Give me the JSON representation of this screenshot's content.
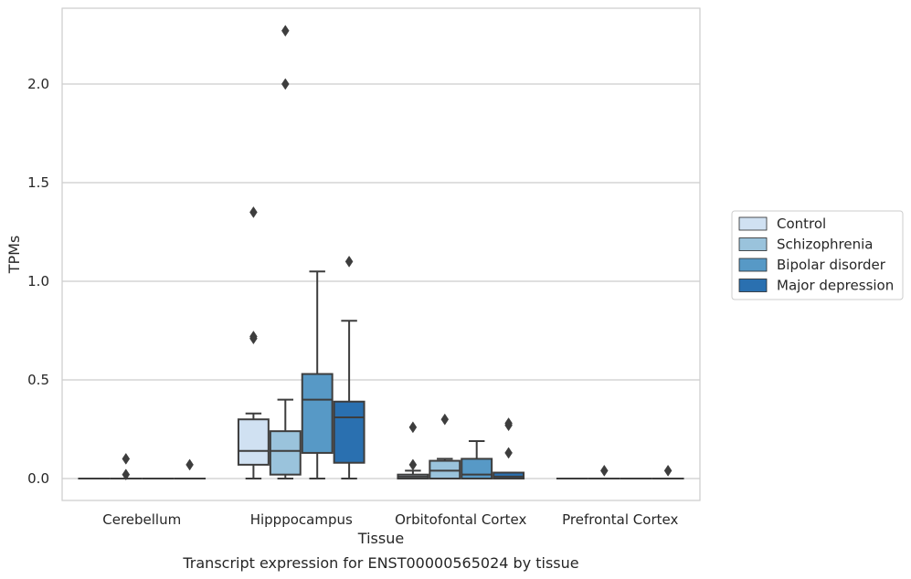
{
  "chart_data": {
    "type": "box",
    "xlabel": "Tissue",
    "ylabel": "TPMs",
    "caption": "Transcript expression for ENST00000565024 by tissue",
    "ylim": [
      -0.11,
      2.39
    ],
    "yticks": [
      0.0,
      0.5,
      1.0,
      1.5,
      2.0
    ],
    "ytick_labels": [
      "0.0",
      "0.5",
      "1.0",
      "1.5",
      "2.0"
    ],
    "grid": "horizontal",
    "legend_position": "right",
    "categories": [
      "Cerebellum",
      "Hipppocampus",
      "Orbitofontal Cortex",
      "Prefrontal Cortex"
    ],
    "series": [
      {
        "name": "Control",
        "color": "#d0e1f2",
        "boxes": [
          {
            "q1": 0.0,
            "median": 0.0,
            "q3": 0.0,
            "whisker_low": 0.0,
            "whisker_high": 0.0,
            "outliers": []
          },
          {
            "q1": 0.07,
            "median": 0.14,
            "q3": 0.3,
            "whisker_low": 0.0,
            "whisker_high": 0.33,
            "outliers": [
              0.71,
              0.72,
              1.35
            ]
          },
          {
            "q1": 0.0,
            "median": 0.01,
            "q3": 0.02,
            "whisker_low": 0.0,
            "whisker_high": 0.04,
            "outliers": [
              0.07,
              0.26
            ]
          },
          {
            "q1": 0.0,
            "median": 0.0,
            "q3": 0.0,
            "whisker_low": 0.0,
            "whisker_high": 0.0,
            "outliers": []
          }
        ]
      },
      {
        "name": "Schizophrenia",
        "color": "#9ac3dc",
        "boxes": [
          {
            "q1": 0.0,
            "median": 0.0,
            "q3": 0.0,
            "whisker_low": 0.0,
            "whisker_high": 0.0,
            "outliers": [
              0.02,
              0.1
            ]
          },
          {
            "q1": 0.02,
            "median": 0.14,
            "q3": 0.24,
            "whisker_low": 0.0,
            "whisker_high": 0.4,
            "outliers": [
              2.0,
              2.27
            ]
          },
          {
            "q1": 0.0,
            "median": 0.04,
            "q3": 0.09,
            "whisker_low": 0.0,
            "whisker_high": 0.1,
            "outliers": [
              0.3
            ]
          },
          {
            "q1": 0.0,
            "median": 0.0,
            "q3": 0.0,
            "whisker_low": 0.0,
            "whisker_high": 0.0,
            "outliers": [
              0.04
            ]
          }
        ]
      },
      {
        "name": "Bipolar disorder",
        "color": "#5799c6",
        "boxes": [
          {
            "q1": 0.0,
            "median": 0.0,
            "q3": 0.0,
            "whisker_low": 0.0,
            "whisker_high": 0.0,
            "outliers": []
          },
          {
            "q1": 0.13,
            "median": 0.4,
            "q3": 0.53,
            "whisker_low": 0.0,
            "whisker_high": 1.05,
            "outliers": []
          },
          {
            "q1": 0.0,
            "median": 0.02,
            "q3": 0.1,
            "whisker_low": 0.0,
            "whisker_high": 0.19,
            "outliers": []
          },
          {
            "q1": 0.0,
            "median": 0.0,
            "q3": 0.0,
            "whisker_low": 0.0,
            "whisker_high": 0.0,
            "outliers": []
          }
        ]
      },
      {
        "name": "Major depression",
        "color": "#2a70b0",
        "boxes": [
          {
            "q1": 0.0,
            "median": 0.0,
            "q3": 0.0,
            "whisker_low": 0.0,
            "whisker_high": 0.0,
            "outliers": [
              0.07
            ]
          },
          {
            "q1": 0.08,
            "median": 0.31,
            "q3": 0.39,
            "whisker_low": 0.0,
            "whisker_high": 0.8,
            "outliers": [
              1.1
            ]
          },
          {
            "q1": 0.0,
            "median": 0.01,
            "q3": 0.03,
            "whisker_low": 0.0,
            "whisker_high": 0.03,
            "outliers": [
              0.13,
              0.27,
              0.28
            ]
          },
          {
            "q1": 0.0,
            "median": 0.0,
            "q3": 0.0,
            "whisker_low": 0.0,
            "whisker_high": 0.0,
            "outliers": [
              0.04
            ]
          }
        ]
      }
    ]
  }
}
